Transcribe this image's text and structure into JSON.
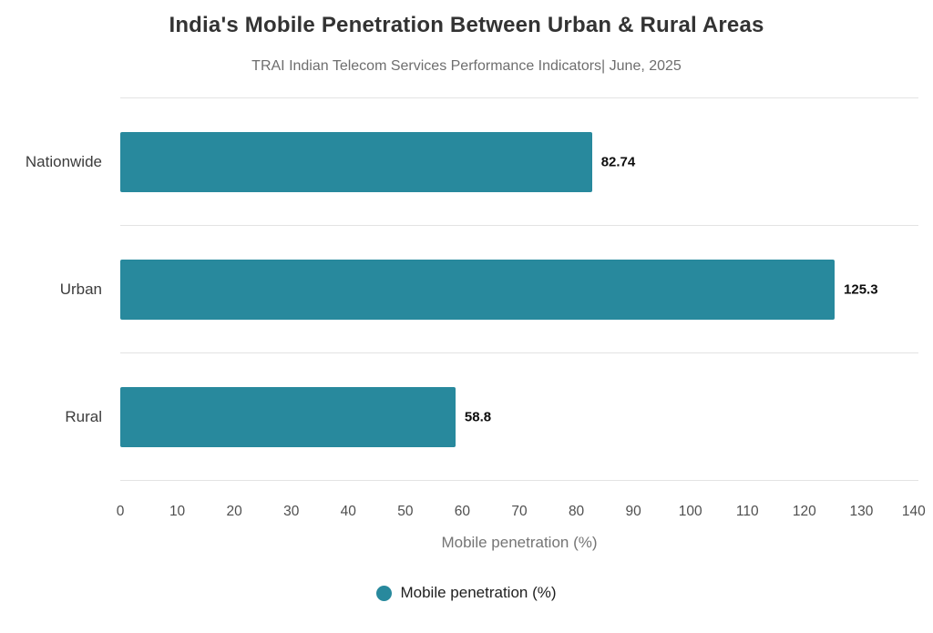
{
  "title": "India's Mobile Penetration Between Urban & Rural Areas",
  "subtitle": "TRAI Indian Telecom Services Performance Indicators| June, 2025",
  "chart_data": {
    "type": "bar",
    "orientation": "horizontal",
    "categories": [
      "Nationwide",
      "Urban",
      "Rural"
    ],
    "values": [
      82.74,
      125.3,
      58.8
    ],
    "value_labels": [
      "82.74",
      "125.3",
      "58.8"
    ],
    "title": "India's Mobile Penetration Between Urban & Rural Areas",
    "subtitle": "TRAI Indian Telecom Services Performance Indicators| June, 2025",
    "xlabel": "Mobile penetration (%)",
    "ylabel": "",
    "xlim": [
      0,
      140
    ],
    "xticks": [
      0,
      10,
      20,
      30,
      40,
      50,
      60,
      70,
      80,
      90,
      100,
      110,
      120,
      130,
      140
    ],
    "grid": "horizontal-row-separators",
    "bar_color": "#28899d",
    "legend": {
      "position": "bottom",
      "entries": [
        {
          "label": "Mobile penetration (%)",
          "color": "#28899d"
        }
      ]
    }
  },
  "colors": {
    "background": "#ffffff",
    "bar": "#28899d",
    "title_text": "#333333",
    "subtitle_text": "#6e6e6e",
    "category_text": "#3c3c3c",
    "value_text": "#0d0d0d",
    "tick_text": "#4f4f4f",
    "axis_label_text": "#757575",
    "legend_text": "#1f1f1f",
    "grid_line": "#e3e3e3"
  }
}
